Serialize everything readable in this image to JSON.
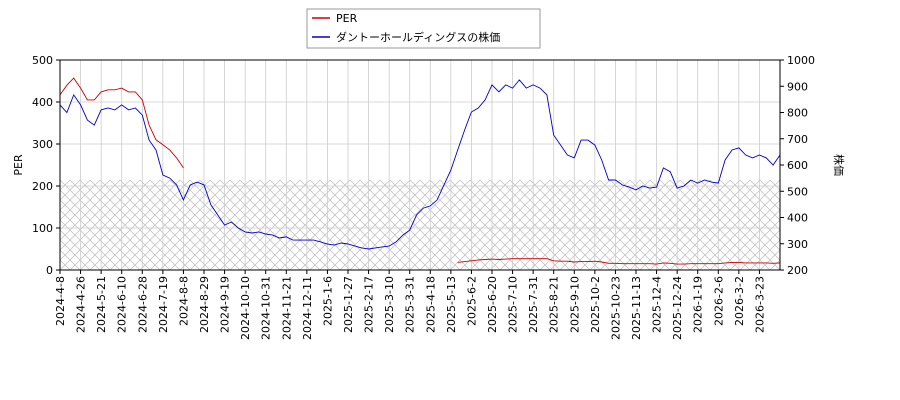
{
  "chart_data": {
    "type": "line",
    "categories": [
      "2024-4-8",
      null,
      null,
      "2024-4-26",
      null,
      null,
      "2024-5-21",
      null,
      null,
      "2024-6-10",
      null,
      null,
      "2024-6-28",
      null,
      null,
      "2024-7-19",
      null,
      null,
      "2024-8-8",
      null,
      null,
      "2024-8-29",
      null,
      null,
      "2024-9-19",
      null,
      null,
      "2024-10-10",
      null,
      null,
      "2024-10-31",
      null,
      null,
      "2024-11-21",
      null,
      null,
      "2024-12-11",
      null,
      null,
      "2025-1-6",
      null,
      null,
      "2025-1-27",
      null,
      null,
      "2025-2-17",
      null,
      null,
      "2025-3-10",
      null,
      null,
      "2025-3-31",
      null,
      null,
      "2025-4-18",
      null,
      null,
      "2025-5-13",
      null,
      null,
      "2025-6-2",
      null,
      null,
      "2025-6-20",
      null,
      null,
      "2025-7-10",
      null,
      null,
      "2025-7-31",
      null,
      null,
      "2025-8-21",
      null,
      null,
      "2025-9-10",
      null,
      null,
      "2025-10-2",
      null,
      null,
      "2025-10-23",
      null,
      null,
      "2025-11-13",
      null,
      null,
      "2025-12-4",
      null,
      null,
      "2025-12-24",
      null,
      null,
      "2026-1-19",
      null,
      null,
      "2026-2-6",
      null,
      null,
      "2026-3-2",
      null,
      null,
      "2026-3-23",
      null,
      null,
      null
    ],
    "series": [
      {
        "name": "PER",
        "color": "#cc0000",
        "axis": "y",
        "values": [
          417,
          440,
          457,
          433,
          405,
          405,
          424,
          429,
          429,
          433,
          424,
          424,
          405,
          345,
          310,
          298,
          286,
          267,
          243,
          null,
          null,
          null,
          null,
          null,
          null,
          null,
          null,
          null,
          null,
          null,
          null,
          null,
          null,
          null,
          null,
          null,
          null,
          null,
          null,
          null,
          null,
          null,
          null,
          null,
          null,
          null,
          null,
          null,
          null,
          null,
          null,
          null,
          null,
          null,
          null,
          null,
          null,
          null,
          18,
          20,
          22,
          24,
          25,
          26,
          25,
          26,
          27,
          27,
          27,
          27,
          27,
          27,
          22,
          21,
          21,
          19,
          20,
          20,
          21,
          19,
          16,
          16,
          15,
          15,
          15,
          15,
          15,
          14,
          17,
          16,
          14,
          14,
          15,
          15,
          15,
          15,
          15,
          17,
          18,
          18,
          17,
          17,
          17,
          17,
          16,
          17
        ]
      },
      {
        "name": "ダントーホールディングスの株価",
        "color": "#0000cc",
        "axis": "y2",
        "values": [
          829,
          800,
          867,
          829,
          771,
          752,
          810,
          817,
          810,
          829,
          810,
          817,
          790,
          695,
          657,
          562,
          550,
          524,
          467,
          524,
          535,
          524,
          448,
          410,
          371,
          383,
          360,
          345,
          341,
          345,
          337,
          333,
          322,
          326,
          314,
          314,
          314,
          314,
          307,
          299,
          295,
          303,
          299,
          291,
          284,
          280,
          284,
          288,
          291,
          307,
          333,
          352,
          410,
          436,
          444,
          467,
          524,
          581,
          657,
          733,
          802,
          817,
          848,
          905,
          879,
          905,
          893,
          924,
          893,
          905,
          893,
          867,
          714,
          676,
          638,
          627,
          695,
          695,
          676,
          619,
          543,
          543,
          524,
          516,
          505,
          520,
          512,
          516,
          589,
          574,
          512,
          520,
          543,
          531,
          543,
          535,
          531,
          619,
          657,
          665,
          638,
          627,
          638,
          627,
          600,
          638
        ]
      }
    ],
    "ylim": [
      0,
      500
    ],
    "yticks": [
      0,
      100,
      200,
      300,
      400,
      500
    ],
    "y2lim": [
      200,
      1000
    ],
    "y2ticks": [
      200,
      300,
      400,
      500,
      600,
      700,
      800,
      900,
      1000
    ],
    "ylabel": "PER",
    "y2label": "株価",
    "grid": true
  }
}
